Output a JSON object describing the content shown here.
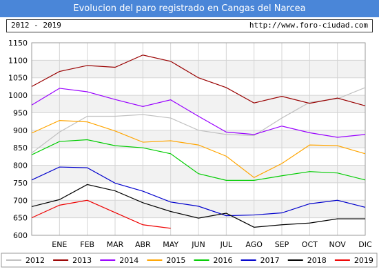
{
  "header": {
    "title": "Evolucion del paro registrado en Cangas del Narcea",
    "period": "2012 - 2019",
    "url": "http://www.foro-ciudad.com"
  },
  "chart_data": {
    "type": "line",
    "categories": [
      "ENE",
      "FEB",
      "MAR",
      "ABR",
      "MAY",
      "JUN",
      "JUL",
      "AGO",
      "SEP",
      "OCT",
      "NOV",
      "DIC"
    ],
    "ylim": [
      600,
      1150
    ],
    "yticks": [
      600,
      650,
      700,
      750,
      800,
      850,
      900,
      950,
      1000,
      1050,
      1100,
      1150
    ],
    "grid": true,
    "legend_position": "bottom",
    "series": [
      {
        "name": "2012",
        "color": "#c0c0c0",
        "start_value": 835,
        "values": [
          895,
          940,
          940,
          945,
          935,
          900,
          888,
          885,
          935,
          980,
          990,
          1022
        ]
      },
      {
        "name": "2013",
        "color": "#990000",
        "start_value": 1025,
        "values": [
          1068,
          1085,
          1080,
          1115,
          1097,
          1050,
          1022,
          978,
          997,
          977,
          992,
          970
        ]
      },
      {
        "name": "2014",
        "color": "#9900ff",
        "start_value": 972,
        "values": [
          1020,
          1010,
          988,
          968,
          987,
          940,
          895,
          888,
          912,
          893,
          880,
          888
        ]
      },
      {
        "name": "2015",
        "color": "#ffa500",
        "start_value": 892,
        "values": [
          928,
          924,
          898,
          866,
          870,
          858,
          826,
          765,
          805,
          858,
          856,
          833
        ]
      },
      {
        "name": "2016",
        "color": "#00cc00",
        "start_value": 830,
        "values": [
          868,
          873,
          856,
          850,
          833,
          776,
          757,
          757,
          770,
          782,
          778,
          758
        ]
      },
      {
        "name": "2017",
        "color": "#0000cc",
        "start_value": 758,
        "values": [
          795,
          793,
          749,
          726,
          695,
          683,
          656,
          658,
          664,
          690,
          700,
          680
        ]
      },
      {
        "name": "2018",
        "color": "#000000",
        "start_value": 682,
        "values": [
          702,
          745,
          727,
          693,
          668,
          649,
          663,
          623,
          630,
          635,
          647,
          647
        ]
      },
      {
        "name": "2019",
        "color": "#ee0000",
        "start_value": 650,
        "values": [
          686,
          700,
          665,
          630,
          620,
          null,
          null,
          null,
          null,
          null,
          null,
          null
        ]
      }
    ]
  }
}
